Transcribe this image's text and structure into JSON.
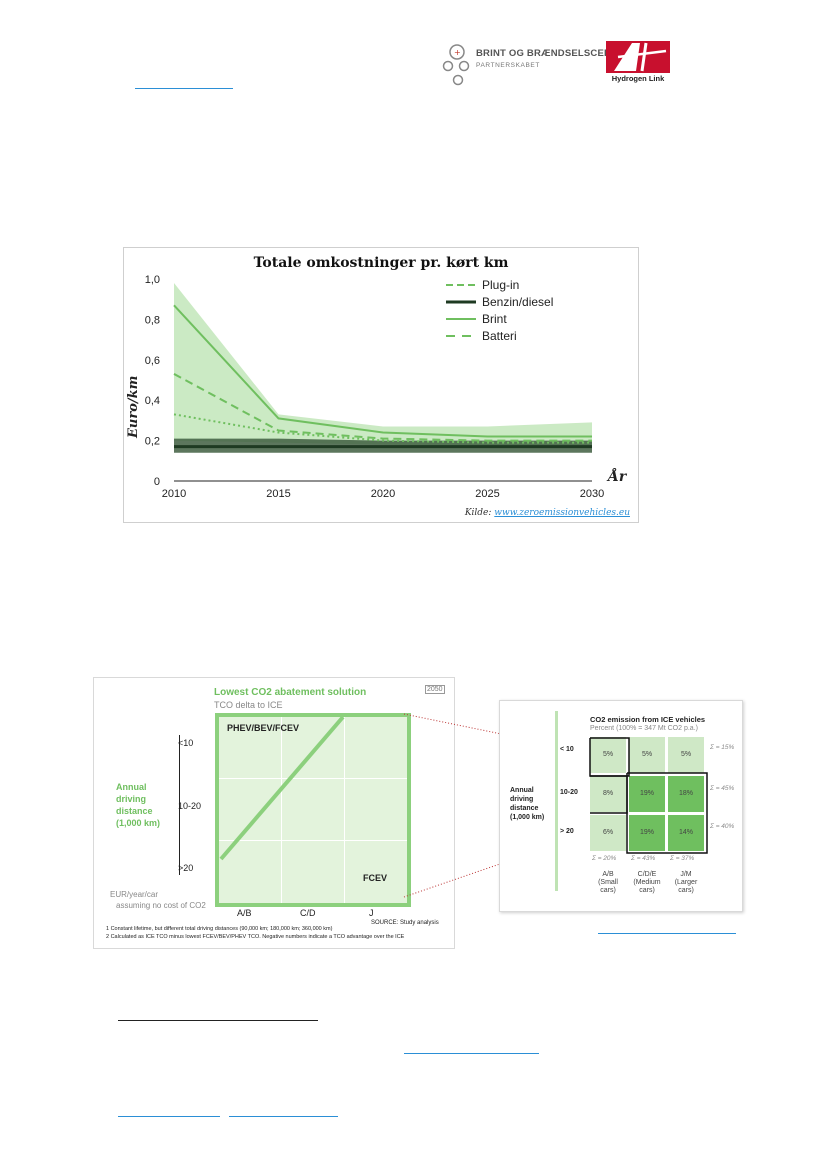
{
  "header": {
    "brint_title": "BRINT OG BRÆNDSELSCELLER",
    "brint_subtitle": "PARTNERSKABET",
    "hydrogen_link": "Hydrogen Link"
  },
  "colors": {
    "light_green": "#8cd07d",
    "mid_green": "#6fbf5f",
    "dark_green": "#1e3a22",
    "link_blue": "#2b8fd6"
  },
  "chart_data": [
    {
      "type": "line",
      "title": "Totale omkostninger pr. kørt km",
      "xlabel": "År",
      "ylabel": "Euro/km",
      "x": [
        2010,
        2015,
        2020,
        2025,
        2030
      ],
      "xlim": [
        2010,
        2030
      ],
      "ylim": [
        0,
        1.0
      ],
      "yticks": [
        "0",
        "0,2",
        "0,4",
        "0,6",
        "0,8",
        "1,0"
      ],
      "xticks": [
        "2010",
        "2015",
        "2020",
        "2025",
        "2030"
      ],
      "legend_position": "top-right",
      "series": [
        {
          "name": "Plug-in",
          "style": "dashed",
          "color": "#6fbf5f",
          "points": [
            [
              2010,
              0.53
            ],
            [
              2015,
              0.25
            ],
            [
              2020,
              0.21
            ],
            [
              2025,
              0.2
            ],
            [
              2030,
              0.2
            ]
          ]
        },
        {
          "name": "Benzin/diesel",
          "style": "solid",
          "color": "#1e3a22",
          "points": [
            [
              2010,
              0.17
            ],
            [
              2015,
              0.17
            ],
            [
              2020,
              0.17
            ],
            [
              2025,
              0.17
            ],
            [
              2030,
              0.17
            ]
          ]
        },
        {
          "name": "Brint",
          "style": "solid",
          "color": "#6fbf5f",
          "points": [
            [
              2010,
              0.87
            ],
            [
              2015,
              0.31
            ],
            [
              2020,
              0.24
            ],
            [
              2025,
              0.22
            ],
            [
              2030,
              0.22
            ]
          ]
        },
        {
          "name": "Batteri",
          "style": "dotted",
          "color": "#6fbf5f",
          "points": [
            [
              2010,
              0.33
            ],
            [
              2015,
              0.24
            ],
            [
              2020,
              0.2
            ],
            [
              2025,
              0.19
            ],
            [
              2030,
              0.19
            ]
          ]
        }
      ],
      "bands": [
        {
          "series": "Brint",
          "upper": [
            [
              2010,
              0.98
            ],
            [
              2015,
              0.33
            ],
            [
              2020,
              0.27
            ],
            [
              2025,
              0.27
            ],
            [
              2030,
              0.29
            ]
          ],
          "lower": [
            [
              2010,
              0.2
            ],
            [
              2015,
              0.19
            ],
            [
              2020,
              0.18
            ],
            [
              2025,
              0.17
            ],
            [
              2030,
              0.17
            ]
          ],
          "color": "#8cd07d"
        },
        {
          "series": "Benzin/diesel",
          "upper": [
            [
              2010,
              0.21
            ],
            [
              2015,
              0.21
            ],
            [
              2020,
              0.2
            ],
            [
              2025,
              0.2
            ],
            [
              2030,
              0.2
            ]
          ],
          "lower": [
            [
              2010,
              0.14
            ],
            [
              2015,
              0.14
            ],
            [
              2020,
              0.14
            ],
            [
              2025,
              0.14
            ],
            [
              2030,
              0.14
            ]
          ],
          "color": "#3f5e41"
        }
      ],
      "source_label": "Kilde:",
      "source_link": "www.zeroemissionvehicles.eu"
    },
    {
      "type": "heatmap",
      "title": "Lowest CO2 abatement solution",
      "subtitle": "TCO delta to ICE",
      "badge": "2050",
      "ylabel_lines": [
        "Annual",
        "driving",
        "distance",
        "(1,000 km)"
      ],
      "rows": [
        "<10",
        "10-20",
        ">20"
      ],
      "columns": [
        "A/B",
        "C/D",
        "J"
      ],
      "regions": [
        "PHEV/BEV/FCEV",
        "FCEV"
      ],
      "note_lines": [
        "EUR/year/car",
        "assuming no cost of CO2"
      ],
      "source": "SOURCE: Study analysis",
      "footnotes": [
        "1 Constant lifetime, but different total driving distances (90,000 km; 180,000 km; 360,000 km)",
        "2 Calculated as ICE TCO minus lowest FCEV/BEV/PHEV TCO. Negative numbers indicate a TCO advantage over the ICE"
      ]
    },
    {
      "type": "heatmap",
      "title": "CO2 emission from ICE vehicles",
      "subtitle": "Percent (100% = 347 Mt CO2 p.a.)",
      "ylabel_lines": [
        "Annual",
        "driving",
        "distance",
        "(1,000 km)"
      ],
      "rows": [
        "< 10",
        "10-20",
        "> 20"
      ],
      "columns": [
        {
          "label": "A/B",
          "sub": [
            "(Small",
            "cars)"
          ]
        },
        {
          "label": "C/D/E",
          "sub": [
            "(Medium",
            "cars)"
          ]
        },
        {
          "label": "J/M",
          "sub": [
            "(Larger",
            "cars)"
          ]
        }
      ],
      "cells": [
        [
          "5%",
          "5%",
          "5%"
        ],
        [
          "8%",
          "19%",
          "18%"
        ],
        [
          "6%",
          "19%",
          "14%"
        ]
      ],
      "row_sums": [
        "Σ = 15%",
        "Σ = 45%",
        "Σ = 40%"
      ],
      "col_sums": [
        "Σ = 20%",
        "Σ = 43%",
        "Σ = 37%"
      ]
    }
  ]
}
